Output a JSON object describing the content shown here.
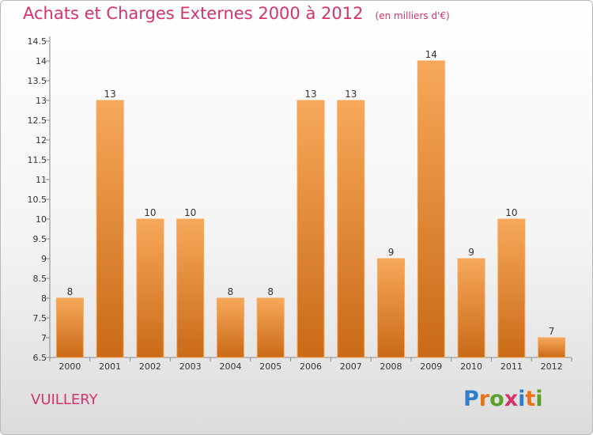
{
  "header": {
    "title": "Achats et Charges Externes 2000 à 2012",
    "subtitle": "(en milliers d'€)"
  },
  "commune": "VUILLERY",
  "logo": {
    "text": "Proxiti",
    "letters": [
      "P",
      "r",
      "o",
      "x",
      "i",
      "t",
      "i"
    ],
    "colors": [
      "#2f7fc8",
      "#e8741a",
      "#5aa02c",
      "#d6336c",
      "#2f7fc8",
      "#e8741a",
      "#5aa02c"
    ]
  },
  "colors": {
    "bar": "#f0913a",
    "bar_light": "#f7a85a",
    "bar_dark": "#c96a16",
    "accent": "#d6336c"
  },
  "chart_data": {
    "type": "bar",
    "title": "Achats et Charges Externes 2000 à 2012",
    "subtitle": "(en milliers d'€)",
    "categories": [
      "2000",
      "2001",
      "2002",
      "2003",
      "2004",
      "2005",
      "2006",
      "2007",
      "2008",
      "2009",
      "2010",
      "2011",
      "2012"
    ],
    "values": [
      8,
      13,
      10,
      10,
      8,
      8,
      13,
      13,
      9,
      14,
      9,
      10,
      7
    ],
    "data_labels": [
      "8",
      "13",
      "10",
      "10",
      "8",
      "8",
      "13",
      "13",
      "9",
      "14",
      "9",
      "10",
      "7"
    ],
    "ylim": [
      6.5,
      14.5
    ],
    "yticks": [
      6.5,
      7,
      7.5,
      8,
      8.5,
      9,
      9.5,
      10,
      10.5,
      11,
      11.5,
      12,
      12.5,
      13,
      13.5,
      14,
      14.5
    ],
    "ytick_labels": [
      "6.5",
      "7",
      "7.5",
      "8",
      "8.5",
      "9",
      "9.5",
      "10",
      "10.5",
      "11",
      "11.5",
      "12",
      "12.5",
      "13",
      "13.5",
      "14",
      "14.5"
    ],
    "grid": false,
    "legend": "none"
  }
}
